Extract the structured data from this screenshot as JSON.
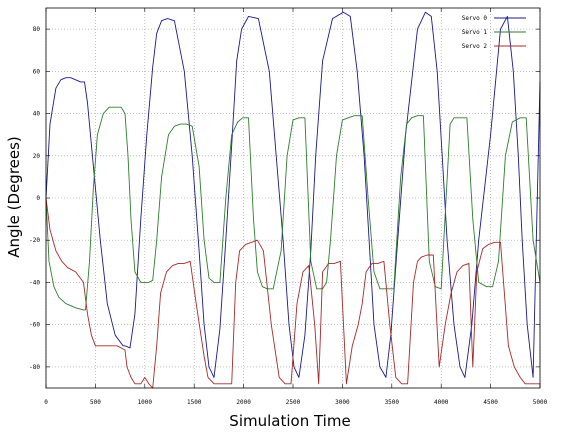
{
  "chart_data": {
    "type": "line",
    "title": "",
    "xlabel": "Simulation Time",
    "ylabel": "Angle (Degrees)",
    "xlim": [
      0,
      5000
    ],
    "ylim": [
      -90,
      90
    ],
    "x_ticks": [
      0,
      500,
      1000,
      1500,
      2000,
      2500,
      3000,
      3500,
      4000,
      4500,
      5000
    ],
    "x_tick_labels": [
      "0",
      "500",
      "1000",
      "1500",
      "2000",
      "2500",
      "3000",
      "3500",
      "4000",
      "4500",
      "5000"
    ],
    "y_ticks": [
      -80,
      -60,
      -40,
      -20,
      0,
      20,
      40,
      60,
      80
    ],
    "y_tick_labels": [
      "-80",
      "-60",
      "-40",
      "-20",
      "0",
      "20",
      "40",
      "60",
      "80"
    ],
    "grid": true,
    "legend_position": "top-right",
    "series": [
      {
        "name": "Servo 0",
        "color": "#1a1a8c",
        "x": [
          0,
          40,
          100,
          150,
          200,
          250,
          300,
          350,
          390,
          420,
          480,
          550,
          620,
          700,
          780,
          800,
          850,
          900,
          960,
          1020,
          1080,
          1120,
          1170,
          1230,
          1300,
          1400,
          1480,
          1550,
          1600,
          1650,
          1700,
          1760,
          1820,
          1880,
          1930,
          1980,
          2050,
          2150,
          2260,
          2330,
          2400,
          2460,
          2510,
          2560,
          2620,
          2680,
          2730,
          2800,
          2900,
          3010,
          3080,
          3150,
          3220,
          3270,
          3320,
          3380,
          3440,
          3490,
          3560,
          3640,
          3760,
          3840,
          3900,
          3960,
          4010,
          4060,
          4130,
          4190,
          4240,
          4310,
          4380,
          4500,
          4600,
          4670,
          4730,
          4780,
          4820,
          4870,
          4930,
          5000
        ],
        "y": [
          0,
          35,
          52,
          56,
          57,
          57,
          56,
          55,
          55,
          45,
          15,
          -20,
          -50,
          -65,
          -70,
          -70,
          -71,
          -55,
          -10,
          30,
          62,
          78,
          84,
          85,
          84,
          60,
          20,
          -25,
          -60,
          -80,
          -85,
          -62,
          -20,
          25,
          65,
          80,
          86,
          85,
          60,
          20,
          -20,
          -60,
          -80,
          -85,
          -65,
          -25,
          20,
          65,
          85,
          88,
          86,
          60,
          20,
          -20,
          -60,
          -80,
          -85,
          -65,
          -20,
          30,
          80,
          88,
          86,
          60,
          20,
          -20,
          -60,
          -80,
          -85,
          -60,
          -20,
          30,
          80,
          86,
          60,
          20,
          -20,
          -60,
          -85,
          55
        ]
      },
      {
        "name": "Servo 1",
        "color": "#2e7d2e",
        "x": [
          0,
          30,
          80,
          130,
          200,
          300,
          380,
          400,
          440,
          480,
          520,
          580,
          640,
          700,
          760,
          800,
          830,
          860,
          900,
          960,
          1000,
          1040,
          1080,
          1120,
          1170,
          1240,
          1300,
          1360,
          1420,
          1480,
          1550,
          1600,
          1650,
          1700,
          1760,
          1820,
          1880,
          1940,
          1990,
          2050,
          2100,
          2140,
          2190,
          2240,
          2300,
          2380,
          2440,
          2500,
          2560,
          2620,
          2680,
          2740,
          2800,
          2840,
          2880,
          2940,
          3000,
          3060,
          3120,
          3200,
          3260,
          3320,
          3380,
          3450,
          3520,
          3590,
          3650,
          3700,
          3760,
          3820,
          3880,
          3940,
          4000,
          4050,
          4090,
          4130,
          4200,
          4260,
          4320,
          4380,
          4460,
          4520,
          4580,
          4650,
          4720,
          4800,
          4860,
          4930,
          5000
        ],
        "y": [
          0,
          -30,
          -42,
          -47,
          -50,
          -52,
          -53,
          -53,
          -30,
          5,
          30,
          40,
          43,
          43,
          43,
          40,
          20,
          -10,
          -35,
          -40,
          -40,
          -40,
          -39,
          -20,
          10,
          30,
          34,
          35,
          35,
          34,
          15,
          -20,
          -38,
          -40,
          -40,
          0,
          30,
          36,
          38,
          38,
          -10,
          -35,
          -42,
          -43,
          -43,
          -25,
          20,
          37,
          38,
          38,
          -30,
          -43,
          -43,
          -40,
          -20,
          20,
          37,
          38,
          39,
          39,
          0,
          -35,
          -43,
          -43,
          -43,
          10,
          35,
          38,
          39,
          39,
          -30,
          -42,
          -43,
          0,
          35,
          38,
          38,
          38,
          -10,
          -40,
          -42,
          -42,
          -30,
          20,
          36,
          38,
          38,
          -20,
          -40
        ]
      },
      {
        "name": "Servo 2",
        "color": "#a52a2a",
        "x": [
          0,
          40,
          100,
          160,
          220,
          300,
          380,
          420,
          460,
          500,
          560,
          640,
          720,
          800,
          820,
          860,
          900,
          960,
          1000,
          1040,
          1080,
          1120,
          1160,
          1220,
          1280,
          1340,
          1400,
          1460,
          1520,
          1600,
          1640,
          1700,
          1760,
          1820,
          1880,
          1920,
          1960,
          2020,
          2080,
          2140,
          2200,
          2280,
          2360,
          2420,
          2480,
          2540,
          2600,
          2660,
          2720,
          2760,
          2800,
          2860,
          2920,
          2980,
          3040,
          3100,
          3160,
          3200,
          3240,
          3300,
          3360,
          3420,
          3480,
          3540,
          3600,
          3660,
          3720,
          3760,
          3800,
          3860,
          3920,
          3980,
          4040,
          4100,
          4160,
          4220,
          4280,
          4320,
          4360,
          4420,
          4480,
          4540,
          4600,
          4680,
          4740,
          4800,
          4850,
          4900,
          4960,
          5000
        ],
        "y": [
          0,
          -15,
          -25,
          -30,
          -33,
          -35,
          -40,
          -55,
          -65,
          -70,
          -70,
          -70,
          -70,
          -72,
          -80,
          -85,
          -88,
          -88,
          -85,
          -88,
          -90,
          -70,
          -45,
          -35,
          -32,
          -31,
          -31,
          -30,
          -50,
          -75,
          -85,
          -88,
          -88,
          -88,
          -88,
          -40,
          -25,
          -22,
          -21,
          -20,
          -25,
          -60,
          -85,
          -88,
          -88,
          -50,
          -35,
          -32,
          -60,
          -88,
          -35,
          -31,
          -31,
          -30,
          -88,
          -70,
          -60,
          -50,
          -35,
          -31,
          -31,
          -30,
          -60,
          -85,
          -88,
          -88,
          -40,
          -30,
          -28,
          -27,
          -27,
          -80,
          -60,
          -45,
          -35,
          -32,
          -31,
          -80,
          -35,
          -24,
          -22,
          -21,
          -21,
          -70,
          -80,
          -85,
          -88,
          -88,
          -88,
          -88
        ]
      }
    ]
  }
}
